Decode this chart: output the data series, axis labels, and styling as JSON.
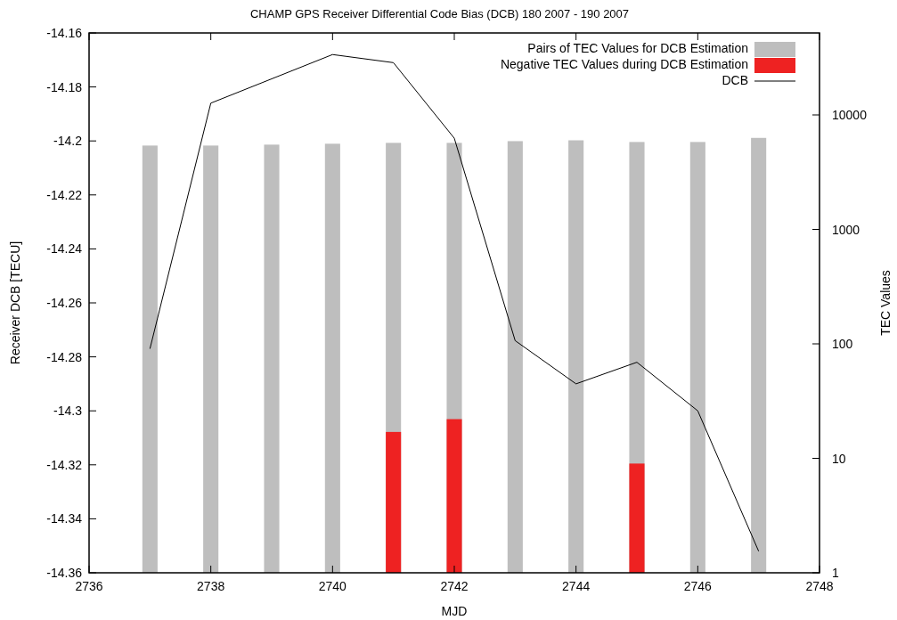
{
  "chart_data": {
    "type": "bar",
    "title": "CHAMP GPS Receiver Differential Code Bias (DCB) 180 2007 - 190 2007",
    "xlabel": "MJD",
    "ylabel": "Receiver DCB [TECU]",
    "y2label": "TEC Values",
    "x": [
      2737,
      2738,
      2739,
      2740,
      2741,
      2742,
      2743,
      2744,
      2745,
      2746,
      2747
    ],
    "series": [
      {
        "name": "Pairs of TEC Values for DCB Estimation",
        "axis": "y2",
        "color": "#bebebe",
        "values": [
          5400,
          5400,
          5500,
          5600,
          5700,
          5700,
          5900,
          6000,
          5800,
          5800,
          6300
        ]
      },
      {
        "name": "Negative TEC Values during DCB Estimation",
        "axis": "y2",
        "color": "#ee2222",
        "values": [
          null,
          null,
          null,
          null,
          17,
          22,
          null,
          null,
          9,
          null,
          null
        ]
      },
      {
        "name": "DCB",
        "type": "line",
        "color": "#000000",
        "values": [
          -14.277,
          -14.186,
          -14.177,
          -14.168,
          -14.171,
          -14.199,
          -14.274,
          -14.29,
          -14.282,
          -14.3,
          -14.352
        ]
      }
    ],
    "xlim": [
      2736,
      2748
    ],
    "xticks": [
      2736,
      2738,
      2740,
      2742,
      2744,
      2746,
      2748
    ],
    "ylim": [
      -14.36,
      -14.16
    ],
    "yticks": [
      -14.36,
      -14.34,
      -14.32,
      -14.3,
      -14.28,
      -14.26,
      -14.24,
      -14.22,
      -14.2,
      -14.18,
      -14.16
    ],
    "y2lim": [
      1,
      52000
    ],
    "y2ticks": [
      1,
      10,
      100,
      1000,
      10000
    ],
    "log": "y2",
    "legend": "top right",
    "grid": false,
    "line_style": "solid",
    "marker": "none"
  }
}
